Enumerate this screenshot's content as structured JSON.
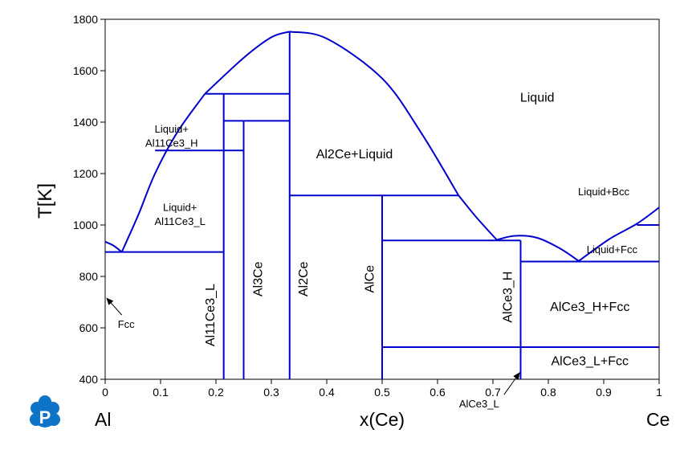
{
  "chart_data": {
    "type": "line",
    "title": "",
    "xlabel": "x(Ce)",
    "ylabel": "T[K]",
    "xlim": [
      0,
      1
    ],
    "ylim": [
      400,
      1800
    ],
    "x_ticks": [
      "0",
      "0.1",
      "0.2",
      "0.3",
      "0.4",
      "0.5",
      "0.6",
      "0.7",
      "0.8",
      "0.9",
      "1"
    ],
    "y_ticks": [
      "400",
      "600",
      "800",
      "1000",
      "1200",
      "1400",
      "1600",
      "1800"
    ],
    "left_element": "Al",
    "right_element": "Ce",
    "line_color": "#0000cc",
    "curves": [
      [
        [
          0,
          935
        ],
        [
          0.015,
          920
        ],
        [
          0.03,
          895
        ]
      ],
      [
        [
          0.03,
          895
        ],
        [
          0.06,
          1040
        ],
        [
          0.09,
          1200
        ],
        [
          0.13,
          1360
        ],
        [
          0.18,
          1510
        ]
      ],
      [
        [
          0.18,
          1510
        ],
        [
          0.25,
          1650
        ],
        [
          0.3,
          1730
        ],
        [
          0.333,
          1752
        ]
      ],
      [
        [
          0.333,
          1752
        ],
        [
          0.4,
          1725
        ],
        [
          0.5,
          1570
        ],
        [
          0.57,
          1360
        ],
        [
          0.638,
          1115
        ]
      ],
      [
        [
          0.638,
          1115
        ],
        [
          0.67,
          1030
        ],
        [
          0.707,
          942
        ]
      ],
      [
        [
          0.707,
          942
        ],
        [
          0.74,
          958
        ],
        [
          0.78,
          950
        ],
        [
          0.82,
          910
        ],
        [
          0.855,
          860
        ]
      ],
      [
        [
          0.855,
          860
        ],
        [
          0.91,
          945
        ],
        [
          0.96,
          1005
        ],
        [
          1.0,
          1068
        ]
      ]
    ],
    "segments": [
      [
        [
          0.0,
          895
        ],
        [
          0.214,
          895
        ]
      ],
      [
        [
          0.09,
          1290
        ],
        [
          0.25,
          1290
        ]
      ],
      [
        [
          0.18,
          1510
        ],
        [
          0.333,
          1510
        ]
      ],
      [
        [
          0.214,
          1405
        ],
        [
          0.333,
          1405
        ]
      ],
      [
        [
          0.333,
          1115
        ],
        [
          0.638,
          1115
        ]
      ],
      [
        [
          0.5,
          940
        ],
        [
          0.75,
          940
        ]
      ],
      [
        [
          0.75,
          858
        ],
        [
          1.0,
          858
        ]
      ],
      [
        [
          0.96,
          1000
        ],
        [
          1.0,
          1000
        ]
      ],
      [
        [
          0.5,
          525
        ],
        [
          1.0,
          525
        ]
      ],
      [
        [
          0.214,
          400
        ],
        [
          0.214,
          1510
        ]
      ],
      [
        [
          0.25,
          400
        ],
        [
          0.25,
          1405
        ]
      ],
      [
        [
          0.333,
          400
        ],
        [
          0.333,
          1752
        ]
      ],
      [
        [
          0.5,
          400
        ],
        [
          0.5,
          1115
        ]
      ],
      [
        [
          0.75,
          400
        ],
        [
          0.75,
          940
        ]
      ]
    ],
    "labels": [
      {
        "text": "Liquid",
        "x": 0.78,
        "y": 1480,
        "rotate": false
      },
      {
        "text": "Liquid+",
        "x": 0.12,
        "y": 1360,
        "rotate": false
      },
      {
        "text": "Al11Ce3_H",
        "x": 0.12,
        "y": 1305,
        "rotate": false
      },
      {
        "text": "Liquid+",
        "x": 0.135,
        "y": 1055,
        "rotate": false
      },
      {
        "text": "Al11Ce3_L",
        "x": 0.135,
        "y": 1000,
        "rotate": false
      },
      {
        "text": "Al2Ce+Liquid",
        "x": 0.45,
        "y": 1260,
        "rotate": false
      },
      {
        "text": "Liquid+Bcc",
        "x": 0.9,
        "y": 1115,
        "rotate": false
      },
      {
        "text": "Liquid+Fcc",
        "x": 0.915,
        "y": 890,
        "rotate": false
      },
      {
        "text": "AlCe3_H+Fcc",
        "x": 0.875,
        "y": 665,
        "rotate": false
      },
      {
        "text": "AlCe3_L+Fcc",
        "x": 0.875,
        "y": 455,
        "rotate": false
      },
      {
        "text": "Fcc",
        "x": 0.038,
        "y": 600,
        "rotate": false
      },
      {
        "text": "Al11Ce3_L",
        "x": 0.197,
        "y": 650,
        "rotate": true
      },
      {
        "text": "Al3Ce",
        "x": 0.283,
        "y": 790,
        "rotate": true
      },
      {
        "text": "Al2Ce",
        "x": 0.365,
        "y": 790,
        "rotate": true
      },
      {
        "text": "AlCe",
        "x": 0.485,
        "y": 790,
        "rotate": true
      },
      {
        "text": "AlCe3_H",
        "x": 0.734,
        "y": 720,
        "rotate": true
      },
      {
        "text": "AlCe3_L",
        "x": 0.675,
        "y": 290,
        "rotate": false
      }
    ],
    "arrows": [
      {
        "from": [
          0.03,
          650
        ],
        "to": [
          0.003,
          715
        ]
      },
      {
        "from": [
          0.72,
          340
        ],
        "to": [
          0.748,
          425
        ]
      }
    ]
  }
}
